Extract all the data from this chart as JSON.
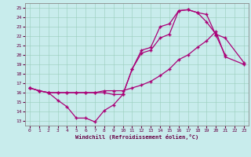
{
  "xlabel": "Windchill (Refroidissement éolien,°C)",
  "background_color": "#c8ecec",
  "line_color": "#aa0077",
  "xlim": [
    -0.5,
    23.5
  ],
  "ylim": [
    12.5,
    25.5
  ],
  "xticks": [
    0,
    1,
    2,
    3,
    4,
    5,
    6,
    7,
    8,
    9,
    10,
    11,
    12,
    13,
    14,
    15,
    16,
    17,
    18,
    19,
    20,
    21,
    22,
    23
  ],
  "yticks": [
    13,
    14,
    15,
    16,
    17,
    18,
    19,
    20,
    21,
    22,
    23,
    24,
    25
  ],
  "line1_x": [
    0,
    1,
    2,
    3,
    4,
    5,
    6,
    7,
    8,
    9,
    10,
    11,
    12,
    13,
    14,
    15,
    16,
    17,
    18,
    19,
    20,
    21
  ],
  "line1_y": [
    16.5,
    16.2,
    16.0,
    15.2,
    14.5,
    13.3,
    13.3,
    12.9,
    14.1,
    14.7,
    15.8,
    18.5,
    20.5,
    20.8,
    23.0,
    23.3,
    24.7,
    24.8,
    24.5,
    24.3,
    22.1,
    20.0
  ],
  "line2_x": [
    0,
    1,
    2,
    3,
    4,
    5,
    6,
    7,
    8,
    9,
    10,
    11,
    12,
    13,
    14,
    15,
    16,
    17,
    18,
    19,
    20,
    21,
    23
  ],
  "line2_y": [
    16.5,
    16.2,
    16.0,
    16.0,
    16.0,
    16.0,
    16.0,
    16.0,
    16.0,
    15.8,
    15.8,
    18.5,
    20.2,
    20.5,
    21.8,
    22.2,
    24.7,
    24.8,
    24.5,
    23.5,
    22.2,
    21.8,
    19.2
  ],
  "line3_x": [
    0,
    1,
    2,
    3,
    4,
    5,
    6,
    7,
    8,
    9,
    10,
    11,
    12,
    13,
    14,
    15,
    16,
    17,
    18,
    19,
    20,
    21,
    23
  ],
  "line3_y": [
    16.5,
    16.2,
    16.0,
    16.0,
    16.0,
    16.0,
    16.0,
    16.0,
    16.2,
    16.2,
    16.2,
    16.5,
    16.8,
    17.2,
    17.8,
    18.5,
    19.5,
    20.0,
    20.8,
    21.5,
    22.5,
    19.8,
    19.0
  ]
}
